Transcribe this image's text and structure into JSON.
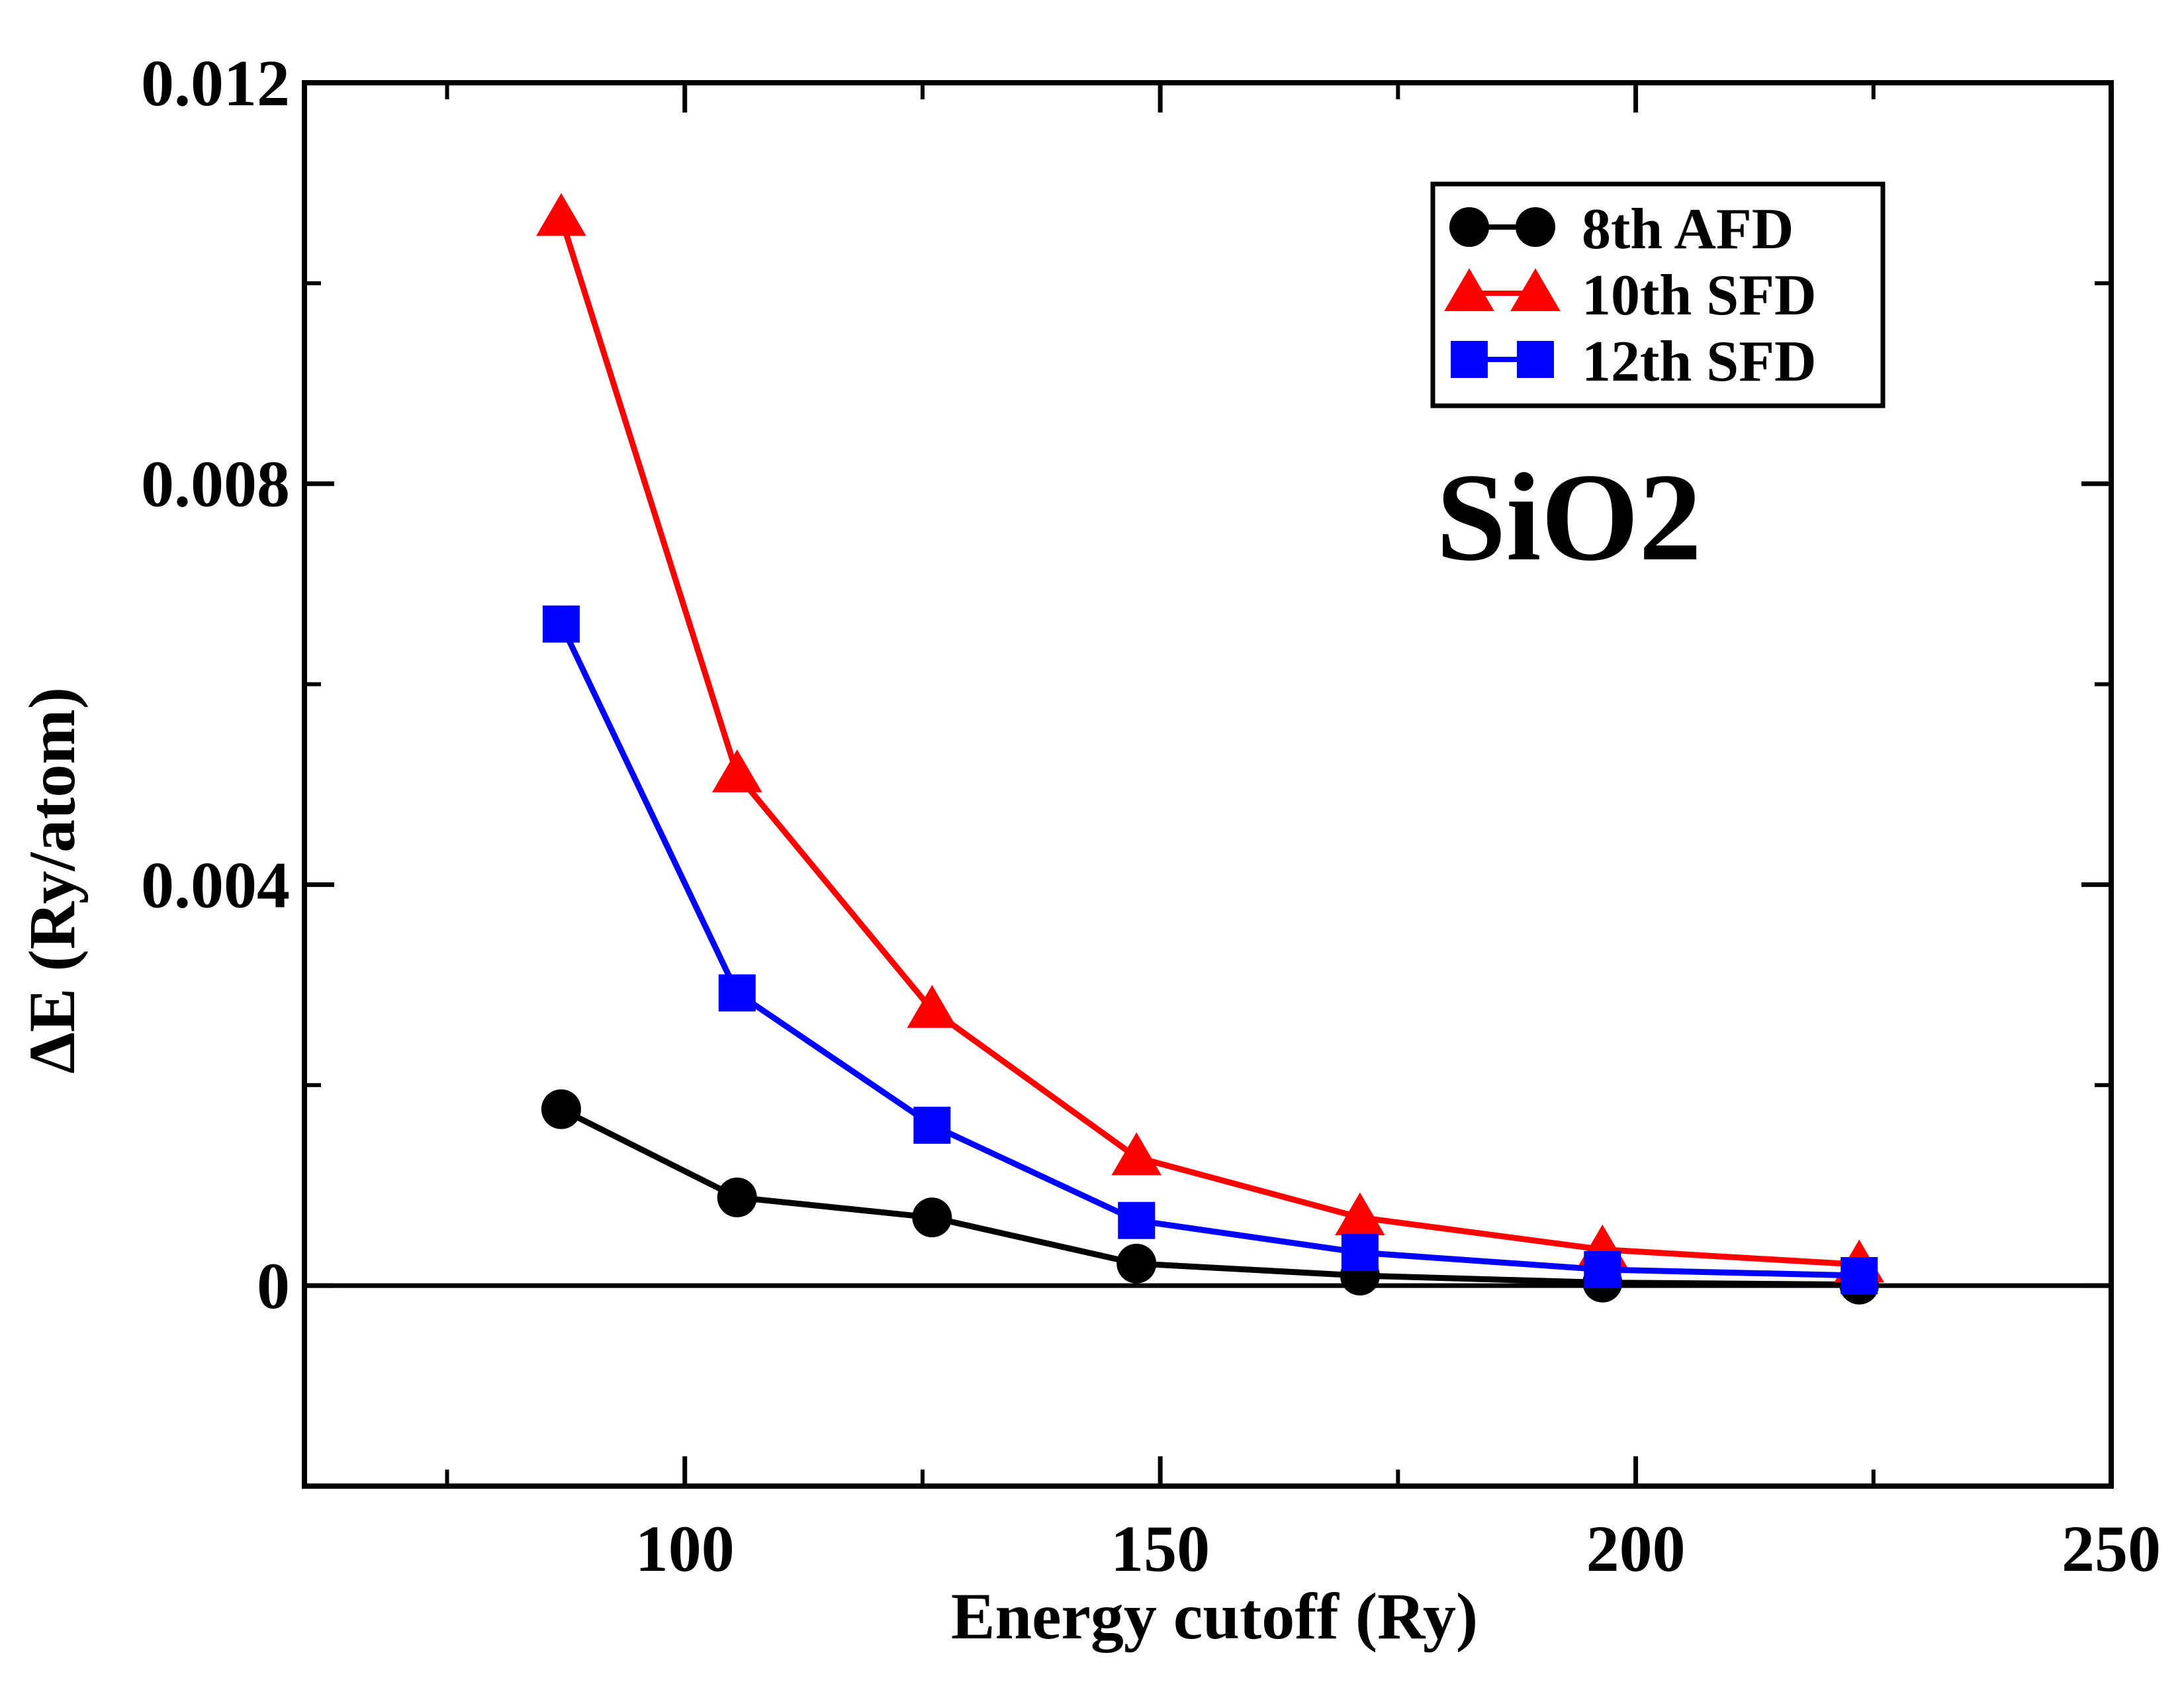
{
  "chart_data": {
    "type": "line",
    "title": "",
    "xlabel": "Energy cutoff (Ry)",
    "ylabel": "ΔE  (Ry/atom)",
    "xlim": [
      60,
      250
    ],
    "ylim": [
      -0.002,
      0.012
    ],
    "xticks": [
      100,
      150,
      200,
      250
    ],
    "xtick_labels": [
      "100",
      "150",
      "200",
      "250"
    ],
    "yticks": [
      0,
      0.004,
      0.008,
      0.012
    ],
    "ytick_labels": [
      "0",
      "0.004",
      "0.008",
      "0.012"
    ],
    "zero_line": true,
    "grid": false,
    "legend_position": "top-right",
    "annotation": "SiO2",
    "x": [
      87,
      105.5,
      126,
      147.5,
      171,
      196.5,
      223.5
    ],
    "series": [
      {
        "name": "8th AFD",
        "color": "#000000",
        "marker": "circle",
        "values": [
          0.00176,
          0.00088,
          0.00068,
          0.00022,
          0.0001,
          3e-05,
          1e-05
        ]
      },
      {
        "name": "10th SFD",
        "color": "#ff0000",
        "marker": "triangle",
        "values": [
          0.01065,
          0.0051,
          0.00275,
          0.00128,
          0.00068,
          0.00036,
          0.00021
        ]
      },
      {
        "name": "12th SFD",
        "color": "#0000ff",
        "marker": "square",
        "values": [
          0.0066,
          0.00292,
          0.0016,
          0.00065,
          0.00033,
          0.00016,
          0.0001
        ]
      }
    ]
  }
}
